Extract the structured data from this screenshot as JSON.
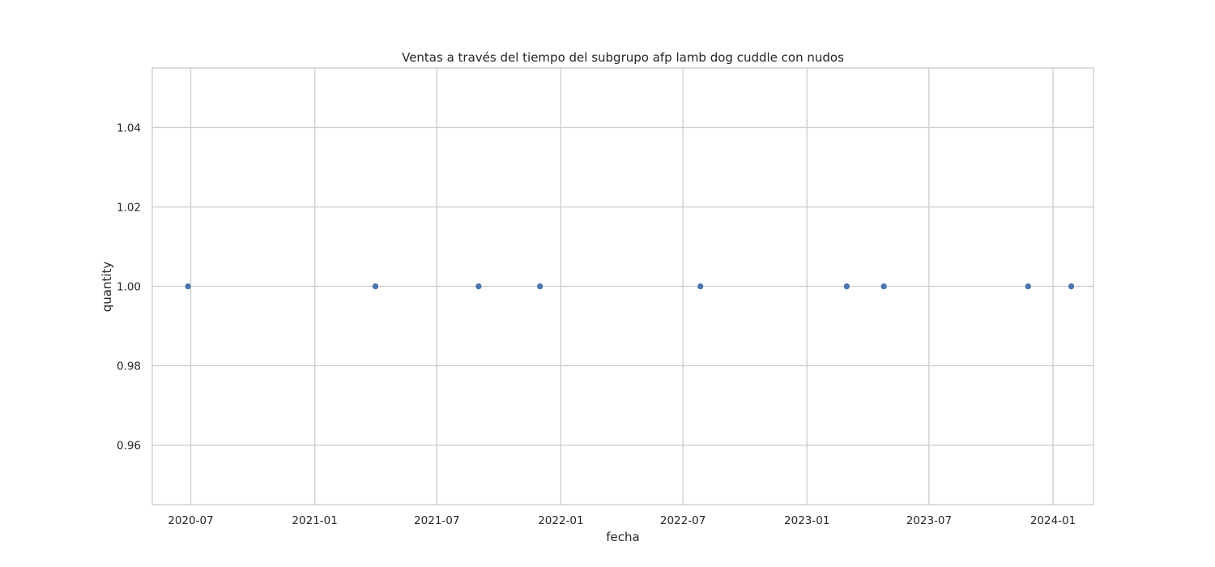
{
  "chart_data": {
    "type": "scatter",
    "title": "Ventas a través del tiempo del subgrupo afp lamb dog cuddle con nudos",
    "xlabel": "fecha",
    "ylabel": "quantity",
    "x_ticks": [
      "2020-07-01",
      "2021-01-01",
      "2021-07-01",
      "2022-01-01",
      "2022-07-01",
      "2023-01-01",
      "2023-07-01",
      "2024-01-01"
    ],
    "x_tick_labels": [
      "2020-07",
      "2021-01",
      "2021-07",
      "2022-01",
      "2022-07",
      "2023-01",
      "2023-07",
      "2024-01"
    ],
    "xlim": [
      "2020-05-05",
      "2024-03-01"
    ],
    "y_ticks": [
      0.96,
      0.98,
      1.0,
      1.02,
      1.04
    ],
    "y_tick_labels": [
      "0.96",
      "0.98",
      "1.00",
      "1.02",
      "1.04"
    ],
    "ylim": [
      0.945,
      1.055
    ],
    "grid": true,
    "legend": "none",
    "point_color": "#4c72b0",
    "series": [
      {
        "x": [
          "2020-06-27",
          "2021-04-01",
          "2021-09-01",
          "2021-12-01",
          "2022-07-27",
          "2023-03-01",
          "2023-04-25",
          "2023-11-25",
          "2024-01-28"
        ],
        "y": [
          1.0,
          1.0,
          1.0,
          1.0,
          1.0,
          1.0,
          1.0,
          1.0,
          1.0
        ]
      }
    ]
  }
}
